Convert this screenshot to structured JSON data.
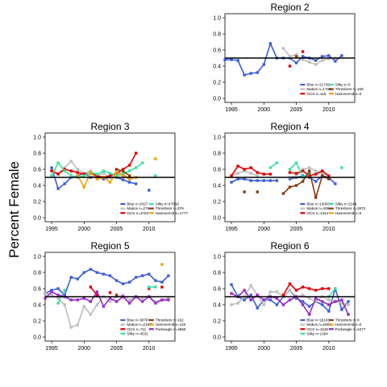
{
  "figure": {
    "ylabel": "Percent Female"
  },
  "chart_data": [
    {
      "type": "line",
      "title": "Region 2",
      "xlim": [
        1994,
        2014
      ],
      "ylim": [
        -0.05,
        1.05
      ],
      "xticks": [
        "1995",
        "2000",
        "2005",
        "2010"
      ],
      "yticks": [
        "0.0",
        "0.2",
        "0.4",
        "0.6",
        "0.8",
        "1.0"
      ],
      "reference_line": 0.5,
      "legend_columns": 2,
      "series": [
        {
          "name": "Blue n=21742",
          "color": "#3b5fd6",
          "x": [
            1994,
            1995,
            1996,
            1997,
            1998,
            1999,
            2000,
            2001,
            2002,
            2003,
            2004,
            2005,
            2006,
            2007,
            2008,
            2009,
            2010,
            2011,
            2012
          ],
          "y": [
            0.48,
            0.48,
            0.47,
            0.29,
            0.31,
            0.32,
            0.42,
            0.68,
            0.5,
            0.5,
            0.5,
            0.44,
            0.52,
            0.5,
            0.47,
            0.52,
            0.53,
            0.46,
            0.53
          ]
        },
        {
          "name": "Makos n=1700",
          "color": "#bdbdbd",
          "x": [
            2003,
            2004,
            2005,
            2006,
            2007,
            2008,
            2009,
            2010,
            2011
          ],
          "y": [
            0.62,
            0.52,
            0.54,
            0.48,
            0.45,
            0.42,
            0.47,
            0.49,
            0.5
          ]
        },
        {
          "name": "OCS n=118",
          "color": "#e00000",
          "x": [
            2004,
            2006
          ],
          "y": [
            0.4,
            0.58
          ]
        },
        {
          "name": "Silky n=0",
          "color": "#3de0a0",
          "x": [],
          "y": []
        },
        {
          "name": "Threshers n=158",
          "color": "#8b3a10",
          "x": [
            2005
          ],
          "y": [
            0.52
          ]
        },
        {
          "name": "HammerHd n=0",
          "color": "#f0a000",
          "x": [],
          "y": []
        }
      ]
    },
    {
      "type": "line",
      "title": "Region 3",
      "xlim": [
        1994,
        2014
      ],
      "ylim": [
        -0.05,
        1.05
      ],
      "xticks": [
        "1995",
        "2000",
        "2005",
        "2010"
      ],
      "yticks": [
        "0.0",
        "0.2",
        "0.4",
        "0.6",
        "0.8",
        "1.0"
      ],
      "reference_line": 0.5,
      "legend_columns": 2,
      "series": [
        {
          "name": "Blue n=2027",
          "color": "#3b5fd6",
          "x": [
            1995,
            1996,
            1997,
            1998,
            1999,
            2000,
            2001,
            2002,
            2003,
            2004,
            2005,
            2006,
            2007,
            2008,
            2010
          ],
          "y": [
            0.62,
            0.36,
            0.42,
            0.5,
            0.52,
            0.55,
            0.5,
            0.52,
            0.48,
            0.5,
            0.5,
            0.47,
            0.44,
            0.42,
            0.34
          ]
        },
        {
          "name": "Makos n=279",
          "color": "#bdbdbd",
          "x": [
            1995,
            1996,
            1997,
            1998,
            1999,
            2000,
            2001,
            2002,
            2003,
            2004,
            2005,
            2006,
            2007
          ],
          "y": [
            0.58,
            0.55,
            0.62,
            0.7,
            0.6,
            0.55,
            0.58,
            0.52,
            0.55,
            0.5,
            0.56,
            0.55,
            0.48
          ]
        },
        {
          "name": "OCS n=3783",
          "color": "#e00000",
          "x": [
            1995,
            1996,
            1997,
            1998,
            1999,
            2000,
            2001,
            2002,
            2003,
            2004,
            2005,
            2006,
            2007,
            2008
          ],
          "y": [
            0.58,
            0.54,
            0.6,
            0.58,
            0.56,
            0.54,
            0.55,
            0.52,
            0.5,
            0.52,
            0.55,
            0.6,
            0.65,
            0.8
          ]
        },
        {
          "name": "Silky n=47660",
          "color": "#3de0a0",
          "x": [
            1995,
            1996,
            1997,
            1998,
            1999,
            2000,
            2001,
            2002,
            2003,
            2004,
            2005,
            2006,
            2007,
            2008,
            2009,
            2011
          ],
          "y": [
            0.52,
            0.68,
            0.58,
            0.52,
            0.5,
            0.52,
            0.56,
            0.54,
            0.58,
            0.55,
            0.52,
            0.54,
            0.58,
            0.62,
            0.68,
            0.52
          ]
        },
        {
          "name": "Threshers n=379",
          "color": "#8b3a10",
          "x": [
            2005,
            2006,
            2007
          ],
          "y": [
            0.6,
            0.58,
            0.52
          ]
        },
        {
          "name": "HammerHd n=1777",
          "color": "#f0a000",
          "x": [
            1999,
            2000,
            2001,
            2002,
            2003,
            2004,
            2005,
            2006,
            2007,
            2008,
            2011
          ],
          "y": [
            0.52,
            0.38,
            0.56,
            0.48,
            0.5,
            0.44,
            0.56,
            0.52,
            0.48,
            0.5,
            0.73
          ]
        }
      ]
    },
    {
      "type": "line",
      "title": "Region 4",
      "xlim": [
        1994,
        2014
      ],
      "ylim": [
        -0.05,
        1.05
      ],
      "xticks": [
        "1995",
        "2000",
        "2005",
        "2010"
      ],
      "yticks": [
        "0.0",
        "0.2",
        "0.4",
        "0.6",
        "0.8",
        "1.0"
      ],
      "reference_line": 0.5,
      "legend_columns": 2,
      "series": [
        {
          "name": "Blue n=14003",
          "color": "#3b5fd6",
          "x": [
            1995,
            1996,
            1997,
            1998,
            1999,
            2000,
            2001,
            2002,
            2004,
            2005,
            2006,
            2007,
            2008,
            2009,
            2010,
            2011
          ],
          "y": [
            0.44,
            0.48,
            0.48,
            0.46,
            0.46,
            0.46,
            0.46,
            0.46,
            0.48,
            0.5,
            0.52,
            0.5,
            0.45,
            0.52,
            0.5,
            0.42
          ]
        },
        {
          "name": "Makos n=409",
          "color": "#bdbdbd",
          "x": [
            1995,
            1996,
            1997,
            1998,
            1999,
            2004,
            2005,
            2006,
            2007,
            2008,
            2009,
            2010
          ],
          "y": [
            0.52,
            0.55,
            0.58,
            0.55,
            0.52,
            0.5,
            0.52,
            0.6,
            0.62,
            0.58,
            0.55,
            0.52
          ]
        },
        {
          "name": "OCS n=1344",
          "color": "#e00000",
          "x": [
            1995,
            1996,
            1997,
            1998,
            1999,
            2000,
            2001,
            2004,
            2005,
            2006,
            2007,
            2008,
            2009,
            2010
          ],
          "y": [
            0.52,
            0.64,
            0.6,
            0.62,
            0.56,
            0.54,
            0.54,
            0.56,
            0.55,
            0.58,
            0.52,
            0.54,
            0.58,
            0.52
          ]
        },
        {
          "name": "Silky n=2149",
          "color": "#3de0a0",
          "x": [
            2001,
            2002,
            2004,
            2005,
            2006,
            2007,
            2012
          ],
          "y": [
            0.62,
            0.68,
            0.6,
            0.68,
            0.5,
            0.55,
            0.62
          ]
        },
        {
          "name": "Threshers n=2872",
          "color": "#8b3a10",
          "x": [
            1997,
            1999,
            2003,
            2004,
            2005,
            2006,
            2007,
            2008,
            2009,
            2010
          ],
          "y": [
            0.32,
            0.32,
            0.3,
            0.38,
            0.4,
            0.45,
            0.58,
            0.25,
            0.52,
            0.48
          ]
        },
        {
          "name": "HammerHd n=0",
          "color": "#f0a000",
          "x": [],
          "y": []
        }
      ]
    },
    {
      "type": "line",
      "title": "Region 5",
      "xlim": [
        1994,
        2014
      ],
      "ylim": [
        -0.05,
        1.05
      ],
      "xticks": [
        "1995",
        "2000",
        "2005",
        "2010"
      ],
      "yticks": [
        "0.0",
        "0.2",
        "0.4",
        "0.6",
        "0.8",
        "1.0"
      ],
      "reference_line": 0.5,
      "legend_columns": 2,
      "series": [
        {
          "name": "Blue n=38797",
          "color": "#3b5fd6",
          "x": [
            1994,
            1995,
            1996,
            1997,
            1998,
            1999,
            2000,
            2001,
            2002,
            2003,
            2004,
            2005,
            2006,
            2007,
            2008,
            2009,
            2010,
            2011,
            2012,
            2013
          ],
          "y": [
            0.54,
            0.58,
            0.6,
            0.52,
            0.74,
            0.72,
            0.8,
            0.84,
            0.8,
            0.78,
            0.76,
            0.7,
            0.66,
            0.68,
            0.74,
            0.76,
            0.78,
            0.7,
            0.68,
            0.76
          ]
        },
        {
          "name": "Makos n=2157",
          "color": "#bdbdbd",
          "x": [
            1994,
            1995,
            1996,
            1997,
            1998,
            1999,
            2000,
            2001,
            2002,
            2003,
            2004,
            2005,
            2006,
            2007,
            2008,
            2009,
            2010,
            2011,
            2012,
            2013
          ],
          "y": [
            0.54,
            0.52,
            0.48,
            0.4,
            0.12,
            0.15,
            0.38,
            0.28,
            0.4,
            0.5,
            0.44,
            0.5,
            0.52,
            0.46,
            0.5,
            0.48,
            0.5,
            0.44,
            0.46,
            0.48
          ]
        },
        {
          "name": "OCS n=711",
          "color": "#e00000",
          "x": [
            2001,
            2002,
            2004,
            2010,
            2012
          ],
          "y": [
            0.62,
            0.52,
            0.55,
            0.6,
            0.62
          ]
        },
        {
          "name": "Silky n=4531",
          "color": "#3de0a0",
          "x": [
            1996,
            1997,
            2010,
            2011
          ],
          "y": [
            0.42,
            0.58,
            0.62,
            0.62
          ]
        },
        {
          "name": "Threshers n=162",
          "color": "#8b3a10",
          "x": [
            2005
          ],
          "y": [
            0.52
          ]
        },
        {
          "name": "HammerHd n=119",
          "color": "#f0a000",
          "x": [
            2012
          ],
          "y": [
            0.9
          ]
        },
        {
          "name": "Porbeagle n=4958",
          "color": "#9a28c8",
          "x": [
            1994,
            1995,
            1996,
            1997,
            1998,
            1999,
            2000,
            2001,
            2002,
            2003,
            2004,
            2005,
            2006,
            2007,
            2008,
            2009,
            2010,
            2011,
            2012,
            2013
          ],
          "y": [
            0.48,
            0.56,
            0.52,
            0.5,
            0.46,
            0.46,
            0.48,
            0.44,
            0.56,
            0.38,
            0.48,
            0.44,
            0.5,
            0.42,
            0.5,
            0.44,
            0.5,
            0.42,
            0.46,
            0.46
          ]
        }
      ]
    },
    {
      "type": "line",
      "title": "Region 6",
      "xlim": [
        1994,
        2014
      ],
      "ylim": [
        -0.05,
        1.05
      ],
      "xticks": [
        "1995",
        "2000",
        "2005",
        "2010"
      ],
      "yticks": [
        "0.0",
        "0.2",
        "0.4",
        "0.6",
        "0.8",
        "1.0"
      ],
      "reference_line": 0.5,
      "legend_columns": 2,
      "series": [
        {
          "name": "Blue n=19103",
          "color": "#3b5fd6",
          "x": [
            1995,
            1996,
            1997,
            1998,
            1999,
            2000,
            2001,
            2002,
            2003,
            2004,
            2005,
            2006,
            2007,
            2008,
            2009,
            2010,
            2011,
            2012,
            2013
          ],
          "y": [
            0.65,
            0.5,
            0.46,
            0.52,
            0.36,
            0.46,
            0.46,
            0.4,
            0.5,
            0.58,
            0.48,
            0.44,
            0.38,
            0.44,
            0.4,
            0.32,
            0.6,
            0.34,
            0.44
          ]
        },
        {
          "name": "Makos n=2994",
          "color": "#bdbdbd",
          "x": [
            1995,
            1996,
            1997,
            1998,
            1999,
            2000,
            2001,
            2002,
            2003,
            2004,
            2005,
            2006,
            2007,
            2008,
            2009,
            2010,
            2011,
            2012,
            2013
          ],
          "y": [
            0.4,
            0.42,
            0.5,
            0.64,
            0.52,
            0.4,
            0.56,
            0.56,
            0.5,
            0.58,
            0.5,
            0.52,
            0.48,
            0.44,
            0.5,
            0.46,
            0.44,
            0.42,
            0.4
          ]
        },
        {
          "name": "OCS n=1530",
          "color": "#e00000",
          "x": [
            2003,
            2004,
            2005,
            2006,
            2007,
            2008,
            2009,
            2010
          ],
          "y": [
            0.52,
            0.66,
            0.58,
            0.62,
            0.6,
            0.58,
            0.6,
            0.6
          ]
        },
        {
          "name": "Silky n=1394",
          "color": "#3de0a0",
          "x": [
            1996,
            2010,
            2011
          ],
          "y": [
            0.52,
            0.5,
            0.6
          ]
        },
        {
          "name": "Threshers n=0",
          "color": "#8b3a10",
          "x": [],
          "y": []
        },
        {
          "name": "HammerHd n=0",
          "color": "#f0a000",
          "x": [],
          "y": []
        },
        {
          "name": "Porbeagle n=2477",
          "color": "#9a28c8",
          "x": [
            1995,
            1996,
            1997,
            1998,
            1999,
            2000,
            2001,
            2002,
            2003,
            2004,
            2005,
            2006,
            2007,
            2008,
            2009,
            2010,
            2011,
            2012,
            2013
          ],
          "y": [
            0.54,
            0.5,
            0.58,
            0.46,
            0.52,
            0.46,
            0.5,
            0.48,
            0.4,
            0.46,
            0.5,
            0.4,
            0.28,
            0.48,
            0.44,
            0.4,
            0.44,
            0.46,
            0.28
          ]
        }
      ]
    }
  ]
}
